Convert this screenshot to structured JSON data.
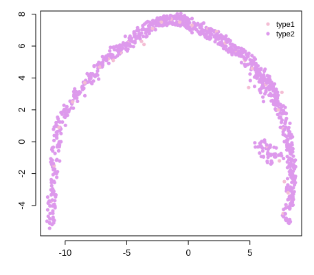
{
  "chart_data": {
    "type": "scatter",
    "title": "",
    "xlabel": "",
    "ylabel": "",
    "xlim": [
      -12,
      9.2
    ],
    "ylim": [
      -5.9,
      8.2
    ],
    "x_ticks": [
      -10,
      -5,
      0,
      5
    ],
    "y_ticks": [
      -4,
      -2,
      0,
      2,
      4,
      6,
      8
    ],
    "x_tick_labels": [
      "-10",
      "-5",
      "0",
      "5"
    ],
    "y_tick_labels": [
      "-4",
      "-2",
      "0",
      "2",
      "4",
      "6",
      "8"
    ],
    "legend_position": "top-right",
    "series": [
      {
        "name": "type1",
        "color": "#f4bdd4",
        "points": [
          [
            -11.1,
            -3.7
          ],
          [
            -10.9,
            -1.5
          ],
          [
            -10.5,
            0.9
          ],
          [
            -10.0,
            1.9
          ],
          [
            -9.4,
            2.5
          ],
          [
            -8.4,
            3.7
          ],
          [
            -7.2,
            4.7
          ],
          [
            -6.5,
            5.2
          ],
          [
            -6.1,
            5.1
          ],
          [
            -5.5,
            5.6
          ],
          [
            -4.9,
            6.2
          ],
          [
            -3.8,
            6.3
          ],
          [
            -3.6,
            6.1
          ],
          [
            -2.9,
            7.1
          ],
          [
            -2.2,
            7.5
          ],
          [
            -1.4,
            7.7
          ],
          [
            -0.7,
            7.5
          ],
          [
            0.3,
            7.3
          ],
          [
            1.6,
            7.1
          ],
          [
            2.3,
            6.9
          ],
          [
            3.0,
            6.2
          ],
          [
            3.9,
            5.7
          ],
          [
            4.6,
            5.1
          ],
          [
            5.2,
            4.6
          ],
          [
            6.3,
            3.6
          ],
          [
            7.3,
            2.0
          ],
          [
            7.7,
            0.8
          ],
          [
            6.4,
            -0.3
          ],
          [
            7.4,
            -1.2
          ],
          [
            7.8,
            -2.5
          ],
          [
            8.1,
            -3.2
          ],
          [
            8.0,
            -4.1
          ],
          [
            7.7,
            -4.5
          ],
          [
            8.4,
            -3.7
          ],
          [
            7.6,
            3.1
          ],
          [
            4.9,
            3.4
          ]
        ]
      },
      {
        "name": "type2",
        "color": "#dd99ec",
        "segments": [
          {
            "from": [
              -11.1,
              -5.3
            ],
            "to": [
              -11.15,
              -4.0
            ],
            "n": 14
          },
          {
            "from": [
              -11.15,
              -4.0
            ],
            "to": [
              -10.95,
              -1.8
            ],
            "n": 22
          },
          {
            "from": [
              -10.95,
              -1.8
            ],
            "to": [
              -10.6,
              0.4
            ],
            "n": 22
          },
          {
            "from": [
              -10.6,
              0.4
            ],
            "to": [
              -10.2,
              1.6
            ],
            "n": 16
          },
          {
            "from": [
              -10.2,
              1.6
            ],
            "to": [
              -9.3,
              2.8
            ],
            "n": 18
          },
          {
            "from": [
              -9.3,
              2.8
            ],
            "to": [
              -8.3,
              3.6
            ],
            "n": 18
          },
          {
            "from": [
              -8.3,
              3.6
            ],
            "to": [
              -7.3,
              4.6
            ],
            "n": 20
          },
          {
            "from": [
              -7.3,
              4.6
            ],
            "to": [
              -6.4,
              5.5
            ],
            "n": 22
          },
          {
            "from": [
              -6.4,
              5.5
            ],
            "to": [
              -5.3,
              6.0
            ],
            "n": 24
          },
          {
            "from": [
              -5.3,
              6.0
            ],
            "to": [
              -4.3,
              6.6
            ],
            "n": 24
          },
          {
            "from": [
              -4.3,
              6.6
            ],
            "to": [
              -3.2,
              7.2
            ],
            "n": 26
          },
          {
            "from": [
              -3.2,
              7.2
            ],
            "to": [
              -2.0,
              7.6
            ],
            "n": 28
          },
          {
            "from": [
              -2.0,
              7.6
            ],
            "to": [
              -0.8,
              7.7
            ],
            "n": 30
          },
          {
            "from": [
              -0.8,
              7.7
            ],
            "to": [
              0.5,
              7.2
            ],
            "n": 34
          },
          {
            "from": [
              0.5,
              7.2
            ],
            "to": [
              1.8,
              6.8
            ],
            "n": 34
          },
          {
            "from": [
              1.8,
              6.8
            ],
            "to": [
              3.0,
              6.2
            ],
            "n": 34
          },
          {
            "from": [
              3.0,
              6.2
            ],
            "to": [
              4.2,
              5.6
            ],
            "n": 34
          },
          {
            "from": [
              4.2,
              5.6
            ],
            "to": [
              5.4,
              4.8
            ],
            "n": 32
          },
          {
            "from": [
              5.4,
              4.8
            ],
            "to": [
              6.4,
              3.8
            ],
            "n": 32
          },
          {
            "from": [
              6.4,
              3.8
            ],
            "to": [
              7.2,
              2.6
            ],
            "n": 30
          },
          {
            "from": [
              7.2,
              2.6
            ],
            "to": [
              7.8,
              1.2
            ],
            "n": 30
          },
          {
            "from": [
              7.8,
              1.2
            ],
            "to": [
              8.3,
              -0.5
            ],
            "n": 30
          },
          {
            "from": [
              8.3,
              -0.5
            ],
            "to": [
              8.4,
              -2.3
            ],
            "n": 30
          },
          {
            "from": [
              8.4,
              -2.3
            ],
            "to": [
              8.2,
              -3.8
            ],
            "n": 28
          },
          {
            "from": [
              8.2,
              -3.8
            ],
            "to": [
              8.0,
              -5.1
            ],
            "n": 20
          },
          {
            "from": [
              5.6,
              -0.2
            ],
            "to": [
              6.6,
              -0.5
            ],
            "n": 14
          },
          {
            "from": [
              6.6,
              -0.5
            ],
            "to": [
              7.5,
              -0.8
            ],
            "n": 14
          },
          {
            "from": [
              6.0,
              -1.0
            ],
            "to": [
              7.0,
              -1.3
            ],
            "n": 10
          },
          {
            "from": [
              5.3,
              4.3
            ],
            "to": [
              5.8,
              3.4
            ],
            "n": 10
          },
          {
            "from": [
              6.0,
              3.6
            ],
            "to": [
              6.4,
              2.8
            ],
            "n": 10
          }
        ]
      }
    ]
  }
}
